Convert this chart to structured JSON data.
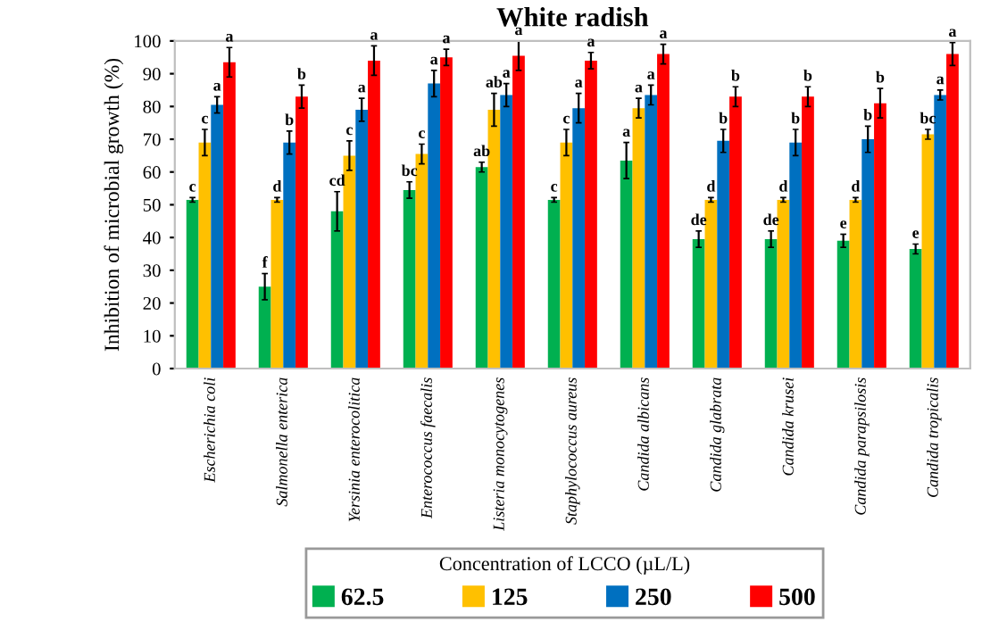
{
  "chart_data": {
    "type": "bar",
    "title": "White radish",
    "ylabel": "Inhibition of microbial growth (%)",
    "legend_title": "Concentration of LCCO (µL/L)",
    "categories": [
      "Escherichia coli",
      "Salmonella enterica",
      "Yersinia enterocolitica",
      "Enterococcus faecalis",
      "Listeria monocytogenes",
      "Staphylococcus aureus",
      "Candida albicans",
      "Candida glabrata",
      "Candida krusei",
      "Candida parapsilosis",
      "Candida tropicalis"
    ],
    "series": [
      {
        "name": "62.5",
        "color": "#00b050",
        "values": [
          51.5,
          25,
          48,
          54.5,
          61.5,
          51.5,
          63.5,
          39.5,
          39.5,
          39,
          36.5
        ],
        "errors": [
          0.7,
          4,
          6,
          2.5,
          1.5,
          0.7,
          5.5,
          2.5,
          2.5,
          2,
          1.5
        ],
        "value_labels": [
          "c",
          "f",
          "cd",
          "bc",
          "ab",
          "c",
          "a",
          "de",
          "de",
          "e",
          "e"
        ]
      },
      {
        "name": "125",
        "color": "#ffc000",
        "values": [
          69,
          51.5,
          65,
          65.5,
          79,
          69,
          79.5,
          51.5,
          51.5,
          51.5,
          71.5
        ],
        "errors": [
          4,
          0.7,
          4.5,
          3,
          5,
          4,
          3,
          0.7,
          0.7,
          0.7,
          1.5
        ],
        "value_labels": [
          "c",
          "d",
          "c",
          "c",
          "ab",
          "c",
          "a",
          "d",
          "d",
          "d",
          "bc"
        ]
      },
      {
        "name": "250",
        "color": "#0070c0",
        "values": [
          80.5,
          69,
          79,
          87,
          83.5,
          79.5,
          83.5,
          69.5,
          69,
          70,
          83.5
        ],
        "errors": [
          2.5,
          3.5,
          3.5,
          4,
          3.5,
          4.5,
          3,
          3.5,
          4,
          4,
          1.5
        ],
        "value_labels": [
          "a",
          "b",
          "a",
          "a",
          "a",
          "a",
          "a",
          "b",
          "b",
          "b",
          "a"
        ]
      },
      {
        "name": "500",
        "color": "#ff0000",
        "values": [
          93.5,
          83,
          94,
          95,
          95.5,
          94,
          96,
          83,
          83,
          81,
          96
        ],
        "errors": [
          4.5,
          3.5,
          4.5,
          2.5,
          4.5,
          2.5,
          3,
          3,
          3,
          4.5,
          3.5
        ],
        "value_labels": [
          "a",
          "b",
          "a",
          "a",
          "a",
          "a",
          "a",
          "b",
          "b",
          "b",
          "a"
        ]
      }
    ],
    "ylim": [
      0,
      100
    ],
    "yticks": [
      0,
      10,
      20,
      30,
      40,
      50,
      60,
      70,
      80,
      90,
      100
    ],
    "grid": false,
    "legend": "bottom"
  }
}
